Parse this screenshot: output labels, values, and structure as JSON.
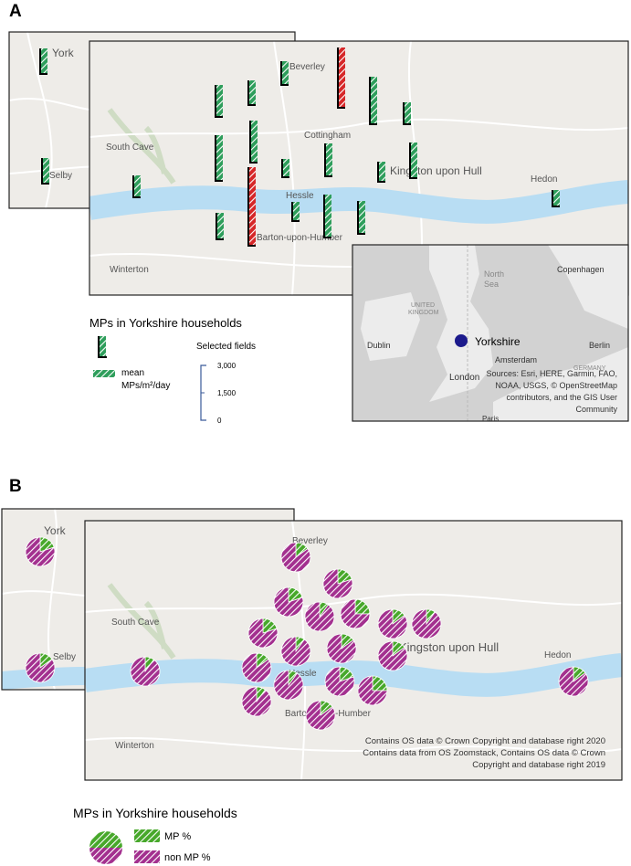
{
  "panels": [
    {
      "label": "A",
      "places": [
        "York",
        "Beverley",
        "South Cave",
        "Cottingham",
        "Kingston upon Hull",
        "Hedon",
        "Selby",
        "Hessle",
        "Barton-upon-Humber",
        "Winterton"
      ],
      "bars": [
        {
          "value": 1350,
          "color": "#2e9e5b"
        },
        {
          "value": 1350,
          "color": "#2e9e5b"
        },
        {
          "value": 1250,
          "color": "#2e9e5b"
        },
        {
          "value": 3250,
          "color": "#d62728"
        },
        {
          "value": 2550,
          "color": "#2e9e5b"
        },
        {
          "value": 1150,
          "color": "#2e9e5b"
        },
        {
          "value": 1700,
          "color": "#2e9e5b"
        },
        {
          "value": 1300,
          "color": "#2e9e5b"
        },
        {
          "value": 2450,
          "color": "#2e9e5b"
        },
        {
          "value": 2250,
          "color": "#2e9e5b"
        },
        {
          "value": 950,
          "color": "#2e9e5b"
        },
        {
          "value": 1750,
          "color": "#2e9e5b"
        },
        {
          "value": 1050,
          "color": "#2e9e5b"
        },
        {
          "value": 1900,
          "color": "#2e9e5b"
        },
        {
          "value": 1150,
          "color": "#2e9e5b"
        },
        {
          "value": 4250,
          "color": "#d62728"
        },
        {
          "value": 1000,
          "color": "#2e9e5b"
        },
        {
          "value": 2300,
          "color": "#2e9e5b"
        },
        {
          "value": 1750,
          "color": "#2e9e5b"
        },
        {
          "value": 1400,
          "color": "#2e9e5b"
        },
        {
          "value": 850,
          "color": "#2e9e5b"
        }
      ],
      "legend": {
        "title": "MPs in Yorkshire households",
        "item": [
          "mean",
          "MPs/m²/day"
        ],
        "scale_title": "Selected fields",
        "scale_ticks": [
          {
            "value": 3000,
            "label": "3,000"
          },
          {
            "value": 1500,
            "label": "1,500"
          },
          0
        ]
      },
      "inset": {
        "places": [
          "North",
          "Sea",
          "UNITED",
          "KINGDOM",
          "Dublin",
          "London",
          "Amsterdam",
          "Copenhagen",
          "Berlin",
          "GERMANY",
          "Paris"
        ],
        "marker": "Yorkshire",
        "sources": [
          "Sources: Esri, HERE, Garmin, FAO,",
          "NOAA, USGS, © OpenStreetMap",
          "contributors, and the GIS User",
          "Community"
        ]
      }
    },
    {
      "label": "B",
      "places": [
        "York",
        "Beverley",
        "South Cave",
        "Kingston upon Hull",
        "Hedon",
        "Selby",
        "Hessle",
        "Barton-upon-Humber",
        "Winterton"
      ],
      "pies": [
        {
          "mp": 20,
          "non_mp": 80
        },
        {
          "mp": 15,
          "non_mp": 85
        },
        {
          "mp": 10,
          "non_mp": 90
        },
        {
          "mp": 15,
          "non_mp": 85
        },
        {
          "mp": 20,
          "non_mp": 80
        },
        {
          "mp": 20,
          "non_mp": 80
        },
        {
          "mp": 10,
          "non_mp": 90
        },
        {
          "mp": 25,
          "non_mp": 75
        },
        {
          "mp": 20,
          "non_mp": 80
        },
        {
          "mp": 10,
          "non_mp": 90
        },
        {
          "mp": 15,
          "non_mp": 85
        },
        {
          "mp": 15,
          "non_mp": 85
        },
        {
          "mp": 10,
          "non_mp": 90
        },
        {
          "mp": 15,
          "non_mp": 85
        },
        {
          "mp": 10,
          "non_mp": 90
        },
        {
          "mp": 20,
          "non_mp": 80
        },
        {
          "mp": 25,
          "non_mp": 75
        },
        {
          "mp": 15,
          "non_mp": 85
        },
        {
          "mp": 10,
          "non_mp": 90
        },
        {
          "mp": 15,
          "non_mp": 85
        },
        {
          "mp": 15,
          "non_mp": 85
        }
      ],
      "colors": {
        "mp": "#47a82a",
        "non_mp": "#a3308f"
      },
      "attribution": [
        "Contains OS data © Crown Copyright and database right 2020",
        "Contains data from OS Zoomstack, Contains OS data © Crown",
        "Copyright and database right 2019"
      ],
      "legend": {
        "title": "MPs in Yorkshire households",
        "mp": "MP %",
        "non_mp": "non MP %"
      }
    }
  ]
}
